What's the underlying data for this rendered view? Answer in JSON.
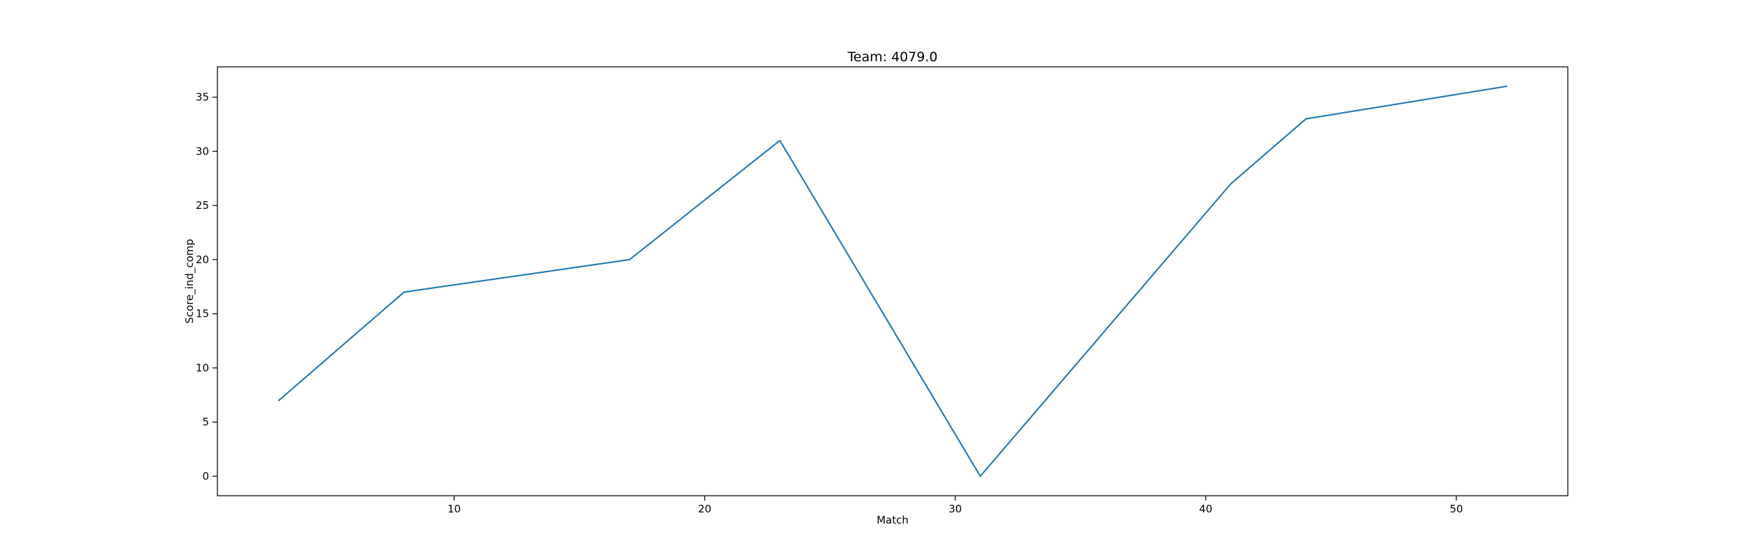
{
  "chart_data": {
    "type": "line",
    "title": "Team: 4079.0",
    "xlabel": "Match",
    "ylabel": "Score_ind_comp",
    "xlim": [
      0.55,
      54.45
    ],
    "ylim": [
      -1.8,
      37.8
    ],
    "xticks": [
      10,
      20,
      30,
      40,
      50
    ],
    "yticks": [
      0,
      5,
      10,
      15,
      20,
      25,
      30,
      35
    ],
    "grid": false,
    "series": [
      {
        "color": "#1f77b4",
        "x": [
          3,
          8,
          17,
          23,
          31,
          41,
          44,
          52
        ],
        "y": [
          7,
          17,
          20,
          31,
          0,
          27,
          33,
          36
        ]
      }
    ]
  }
}
